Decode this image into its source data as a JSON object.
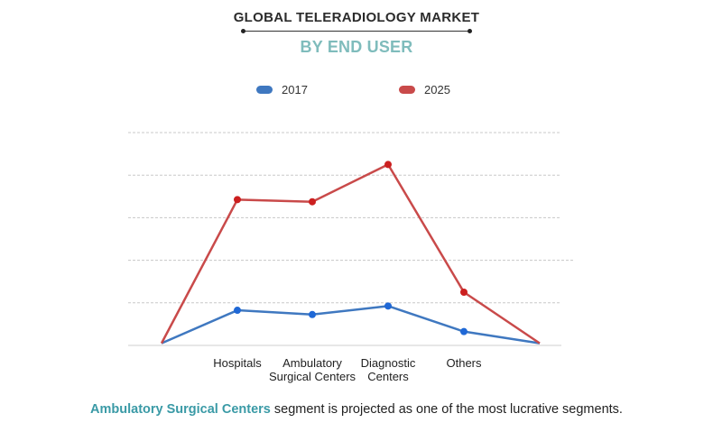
{
  "header": {
    "title": "GLOBAL TELERADIOLOGY MARKET",
    "subtitle": "BY END USER"
  },
  "legend": [
    {
      "label": "2017",
      "color": "#3f78c0"
    },
    {
      "label": "2025",
      "color": "#c94a4a"
    }
  ],
  "caption": {
    "highlight": "Ambulatory Surgical Centers",
    "rest": " segment is projected as one of the most lucrative segments."
  },
  "chart_data": {
    "type": "line",
    "categories": [
      {
        "lines": []
      },
      {
        "lines": [
          "Hospitals"
        ]
      },
      {
        "lines": [
          "Ambulatory",
          "Surgical Centers"
        ]
      },
      {
        "lines": [
          "Diagnostic",
          "Centers"
        ]
      },
      {
        "lines": [
          "Others"
        ]
      },
      {
        "lines": []
      }
    ],
    "ylim": [
      0,
      100
    ],
    "grid": true,
    "legend_position": "top-center",
    "series": [
      {
        "name": "2017",
        "color": "#3f78c0",
        "point_color": "#1f68d6",
        "values": [
          1,
          16.5,
          14.5,
          18.5,
          6.5,
          1
        ]
      },
      {
        "name": "2025",
        "color": "#c94a4a",
        "point_color": "#cc1f1f",
        "values": [
          1,
          68.5,
          67.5,
          85,
          25,
          1
        ]
      }
    ]
  }
}
